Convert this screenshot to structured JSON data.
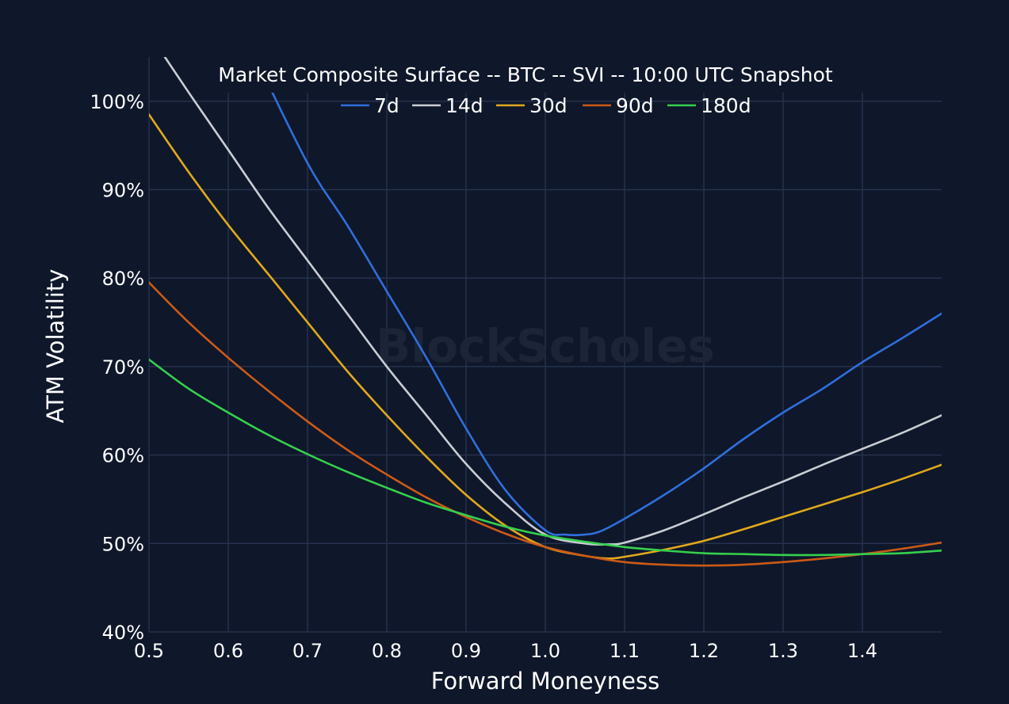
{
  "chart_data": {
    "type": "line",
    "title": "Market Composite Surface -- BTC -- SVI -- 10:00 UTC Snapshot",
    "xlabel": "Forward Moneyness",
    "ylabel": "ATM Volatility",
    "watermark": "BlockScholes",
    "xlim": [
      0.5,
      1.5
    ],
    "ylim": [
      40,
      105
    ],
    "x_ticks": [
      "0.5",
      "0.6",
      "0.7",
      "0.8",
      "0.9",
      "1.0",
      "1.1",
      "1.2",
      "1.3",
      "1.4"
    ],
    "x_tick_values": [
      0.5,
      0.6,
      0.7,
      0.8,
      0.9,
      1.0,
      1.1,
      1.2,
      1.3,
      1.4
    ],
    "y_ticks": [
      "40%",
      "50%",
      "60%",
      "70%",
      "80%",
      "90%",
      "100%"
    ],
    "y_tick_values": [
      40,
      50,
      60,
      70,
      80,
      90,
      100
    ],
    "grid": true,
    "legend_position": "top-center",
    "background": "#0f172a",
    "series": [
      {
        "name": "7d",
        "color": "#2f6fdb",
        "x": [
          0.634,
          0.7,
          0.75,
          0.8,
          0.85,
          0.9,
          0.95,
          1.0,
          1.025,
          1.05,
          1.07,
          1.1,
          1.15,
          1.2,
          1.25,
          1.3,
          1.35,
          1.4,
          1.45,
          1.5
        ],
        "y": [
          105,
          93,
          86,
          78.5,
          71,
          63,
          56,
          51.5,
          51,
          51,
          51.4,
          52.8,
          55.5,
          58.5,
          61.8,
          64.8,
          67.5,
          70.5,
          73.2,
          76
        ]
      },
      {
        "name": "14d",
        "color": "#c9cdd4",
        "x": [
          0.52,
          0.55,
          0.6,
          0.65,
          0.7,
          0.75,
          0.8,
          0.85,
          0.9,
          0.95,
          1.0,
          1.05,
          1.08,
          1.1,
          1.15,
          1.2,
          1.25,
          1.3,
          1.35,
          1.4,
          1.45,
          1.5
        ],
        "y": [
          105,
          101,
          94.5,
          88,
          82,
          76,
          70,
          64.5,
          59,
          54.5,
          51,
          50,
          49.9,
          50.1,
          51.5,
          53.3,
          55.2,
          57,
          58.9,
          60.7,
          62.5,
          64.5
        ]
      },
      {
        "name": "30d",
        "color": "#e0a91c",
        "x": [
          0.5,
          0.55,
          0.6,
          0.65,
          0.7,
          0.75,
          0.8,
          0.85,
          0.9,
          0.95,
          1.0,
          1.05,
          1.08,
          1.1,
          1.15,
          1.2,
          1.25,
          1.3,
          1.35,
          1.4,
          1.45,
          1.5
        ],
        "y": [
          98.5,
          92,
          86,
          80.5,
          75,
          69.5,
          64.5,
          59.8,
          55.5,
          52,
          49.6,
          48.6,
          48.3,
          48.5,
          49.3,
          50.3,
          51.6,
          53,
          54.4,
          55.8,
          57.3,
          58.9
        ]
      },
      {
        "name": "90d",
        "color": "#cc5a16",
        "x": [
          0.5,
          0.55,
          0.6,
          0.65,
          0.7,
          0.75,
          0.8,
          0.85,
          0.9,
          0.95,
          1.0,
          1.05,
          1.1,
          1.15,
          1.2,
          1.25,
          1.3,
          1.35,
          1.4,
          1.45,
          1.5
        ],
        "y": [
          79.5,
          75,
          71,
          67.3,
          63.8,
          60.6,
          57.8,
          55.2,
          53,
          51.1,
          49.6,
          48.6,
          47.9,
          47.6,
          47.5,
          47.6,
          47.9,
          48.3,
          48.8,
          49.4,
          50.1
        ]
      },
      {
        "name": "180d",
        "color": "#35d04d",
        "x": [
          0.5,
          0.55,
          0.6,
          0.65,
          0.7,
          0.75,
          0.8,
          0.85,
          0.9,
          0.95,
          1.0,
          1.05,
          1.1,
          1.15,
          1.2,
          1.25,
          1.3,
          1.35,
          1.4,
          1.45,
          1.5
        ],
        "y": [
          70.8,
          67.5,
          64.8,
          62.3,
          60.1,
          58.1,
          56.3,
          54.6,
          53.2,
          51.9,
          50.9,
          50.2,
          49.6,
          49.2,
          48.9,
          48.8,
          48.7,
          48.7,
          48.8,
          48.9,
          49.2
        ]
      }
    ]
  }
}
